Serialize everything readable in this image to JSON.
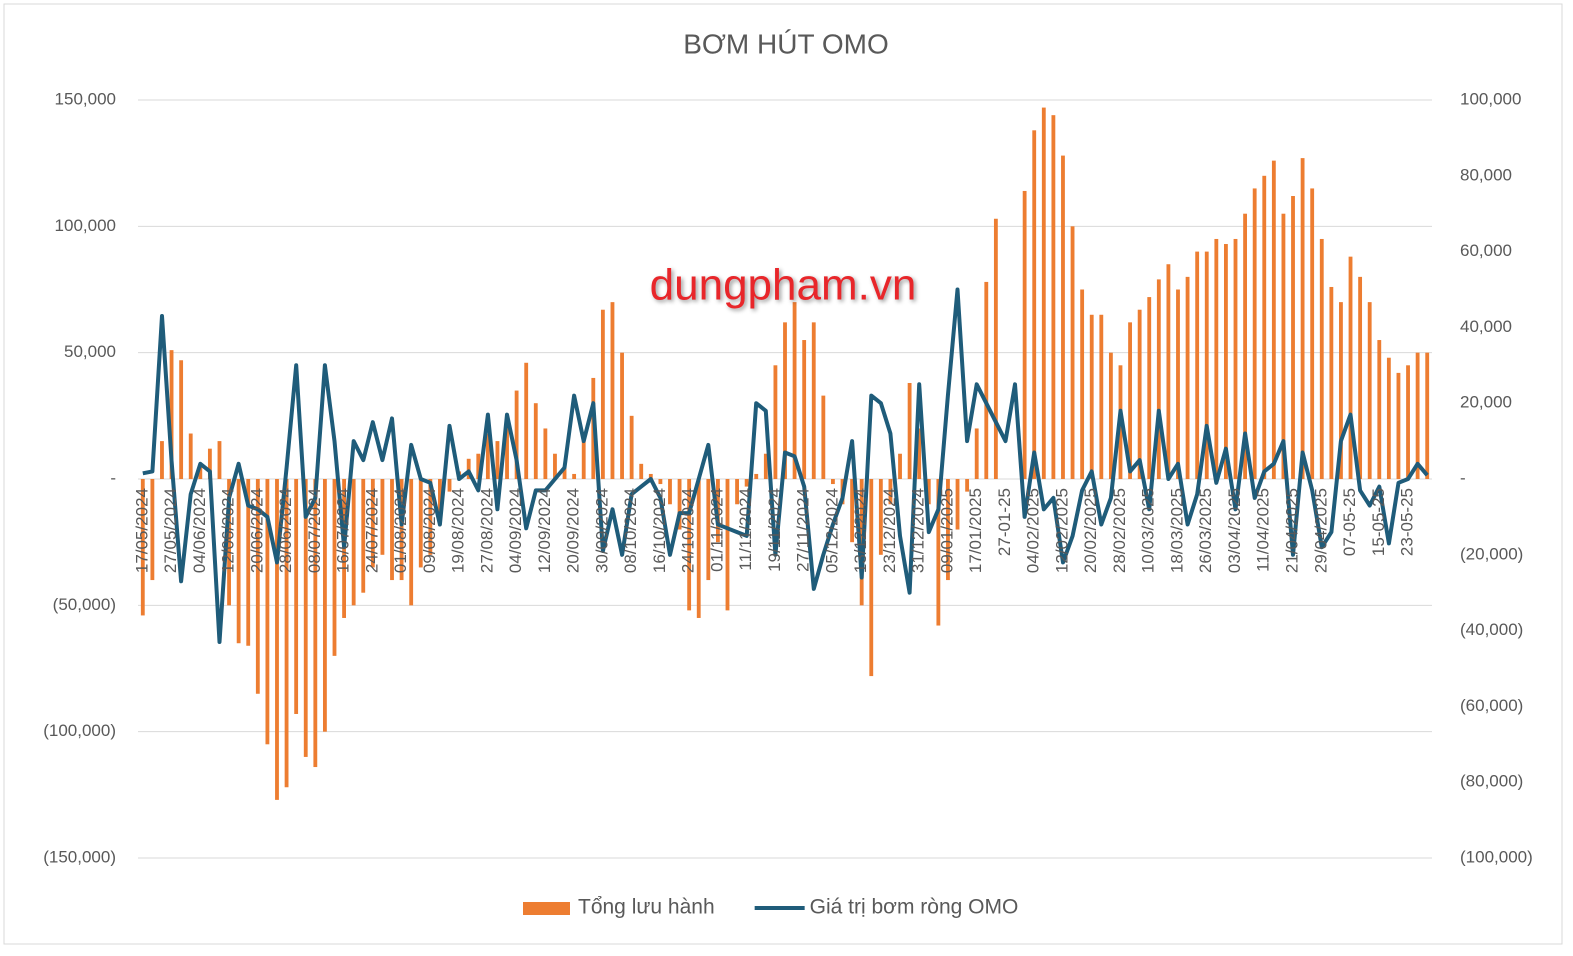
{
  "chart_data": {
    "type": "bar-line",
    "title": "BƠM HÚT OMO",
    "annotation": "dungpham.vn",
    "categories": [
      "17/05/2024",
      null,
      null,
      "27/05/2024",
      null,
      null,
      "04/06/2024",
      null,
      null,
      "12/06/2024",
      null,
      null,
      "20/06/2024",
      null,
      null,
      "28/06/2024",
      null,
      null,
      "08/07/2024",
      null,
      null,
      "16/07/2024",
      null,
      null,
      "24/07/2024",
      null,
      null,
      "01/08/2024",
      null,
      null,
      "09/08/2024",
      null,
      null,
      "19/08/2024",
      null,
      null,
      "27/08/2024",
      null,
      null,
      "04/09/2024",
      null,
      null,
      "12/09/2024",
      null,
      null,
      "20/09/2024",
      null,
      null,
      "30/09/2024",
      null,
      null,
      "08/10/2024",
      null,
      null,
      "16/10/2024",
      null,
      null,
      "24/10/2024",
      null,
      null,
      "01/11/2024",
      null,
      null,
      "11/11/2024",
      null,
      null,
      "19/11/2024",
      null,
      null,
      "27/11/2024",
      null,
      null,
      "05/12/2024",
      null,
      null,
      "13/12/2024",
      null,
      null,
      "23/12/2024",
      null,
      null,
      "31/12/2024",
      null,
      null,
      "09/01/2025",
      null,
      null,
      "17/01/2025",
      null,
      null,
      "27-01-25",
      null,
      null,
      "04/02/2025",
      null,
      null,
      "12/02/2025",
      null,
      null,
      "20/02/2025",
      null,
      null,
      "28/02/2025",
      null,
      null,
      "10/03/2025",
      null,
      null,
      "18/03/2025",
      null,
      null,
      "26/03/2025",
      null,
      null,
      "03/04/2025",
      null,
      null,
      "11/04/2025",
      null,
      null,
      "21/04/2025",
      null,
      null,
      "29/04/2025",
      null,
      null,
      "07-05-25",
      null,
      null,
      "15-05-25",
      null,
      null,
      "23-05-25",
      null,
      null
    ],
    "series": [
      {
        "name": "Tổng lưu hành",
        "kind": "bar",
        "color": "#ed7d31",
        "values": [
          -54000,
          -40000,
          15000,
          51000,
          47000,
          18000,
          5000,
          12000,
          15000,
          -50000,
          -65000,
          -66000,
          -85000,
          -105000,
          -127000,
          -122000,
          -93000,
          -110000,
          -114000,
          -100000,
          -70000,
          -55000,
          -50000,
          -45000,
          -35000,
          -30000,
          -40000,
          -40000,
          -50000,
          -35000,
          -30000,
          -15000,
          -5000,
          3000,
          8000,
          10000,
          18000,
          15000,
          25000,
          35000,
          46000,
          30000,
          20000,
          10000,
          5000,
          2000,
          15000,
          40000,
          67000,
          70000,
          50000,
          25000,
          6000,
          2000,
          -2000,
          -10000,
          -20000,
          -52000,
          -55000,
          -40000,
          -25000,
          -52000,
          -10000,
          -3000,
          2000,
          10000,
          45000,
          62000,
          70000,
          55000,
          62000,
          33000,
          -2000,
          -10000,
          -25000,
          -50000,
          -78000,
          -30000,
          -10000,
          10000,
          38000,
          20000,
          -10000,
          -58000,
          -40000,
          -20000,
          -5000,
          20000,
          78000,
          103000,
          0,
          0,
          114000,
          138000,
          147000,
          144000,
          128000,
          100000,
          75000,
          65000,
          65000,
          50000,
          45000,
          62000,
          67000,
          72000,
          79000,
          85000,
          75000,
          80000,
          90000,
          90000,
          95000,
          93000,
          95000,
          105000,
          115000,
          120000,
          126000,
          105000,
          112000,
          127000,
          115000,
          95000,
          76000,
          70000,
          88000,
          80000,
          70000,
          55000,
          48000,
          42000,
          45000,
          50000,
          50000
        ]
      },
      {
        "name": "Giá trị bơm ròng OMO",
        "kind": "line",
        "axis": "y2",
        "color": "#1f5c7a",
        "values": [
          1500,
          2000,
          43000,
          5000,
          -27000,
          -4000,
          4000,
          2000,
          -43000,
          -5000,
          4000,
          -7000,
          -8000,
          -10000,
          -22000,
          3000,
          30000,
          -10000,
          -5000,
          30000,
          10000,
          -18000,
          10000,
          5000,
          15000,
          5000,
          16000,
          -12000,
          9000,
          0,
          -1000,
          -12000,
          14000,
          0,
          2000,
          -3000,
          17000,
          -8000,
          17000,
          5000,
          -13000,
          -3000,
          -3000,
          0,
          3000,
          22000,
          10000,
          20000,
          -19000,
          -8000,
          -20000,
          -4000,
          -2000,
          0,
          -5000,
          -20000,
          -9000,
          -9000,
          0,
          9000,
          -12000,
          -13000,
          -14000,
          -15000,
          20000,
          18000,
          -20000,
          7000,
          6000,
          -2000,
          -29000,
          -20000,
          -12000,
          -5000,
          10000,
          -26000,
          22000,
          20000,
          12000,
          -15000,
          -30000,
          25000,
          -14000,
          -8000,
          22000,
          50000,
          10000,
          25000,
          20000,
          15000,
          10000,
          25000,
          -10000,
          7000,
          -8000,
          -5000,
          -22000,
          -15000,
          -3000,
          2000,
          -12000,
          -5000,
          18000,
          2000,
          5000,
          -8000,
          18000,
          0,
          4000,
          -12000,
          -4000,
          14000,
          -1000,
          8000,
          -8000,
          12000,
          -5000,
          2000,
          4000,
          10000,
          -20000,
          7000,
          -3000,
          -18000,
          -14000,
          10000,
          17000,
          -3000,
          -7000,
          -2000,
          -17000,
          -1000,
          0,
          4000,
          1000
        ]
      }
    ],
    "ylim": [
      -150000,
      150000
    ],
    "yticks": [
      {
        "value": -150000,
        "label": "(150,000)"
      },
      {
        "value": -100000,
        "label": "(100,000)"
      },
      {
        "value": -50000,
        "label": "(50,000)"
      },
      {
        "value": 0,
        "label": "-"
      },
      {
        "value": 50000,
        "label": "50,000"
      },
      {
        "value": 100000,
        "label": "100,000"
      },
      {
        "value": 150000,
        "label": "150,000"
      }
    ],
    "y2lim": [
      -100000,
      100000
    ],
    "y2ticks": [
      {
        "value": -100000,
        "label": "(100,000)"
      },
      {
        "value": -80000,
        "label": "(80,000)"
      },
      {
        "value": -60000,
        "label": "(60,000)"
      },
      {
        "value": -40000,
        "label": "(40,000)"
      },
      {
        "value": -20000,
        "label": "(20,000)"
      },
      {
        "value": 0,
        "label": "-"
      },
      {
        "value": 20000,
        "label": "20,000"
      },
      {
        "value": 40000,
        "label": "40,000"
      },
      {
        "value": 60000,
        "label": "60,000"
      },
      {
        "value": 80000,
        "label": "80,000"
      },
      {
        "value": 100000,
        "label": "100,000"
      }
    ],
    "grid": true,
    "legend": "bottom"
  }
}
